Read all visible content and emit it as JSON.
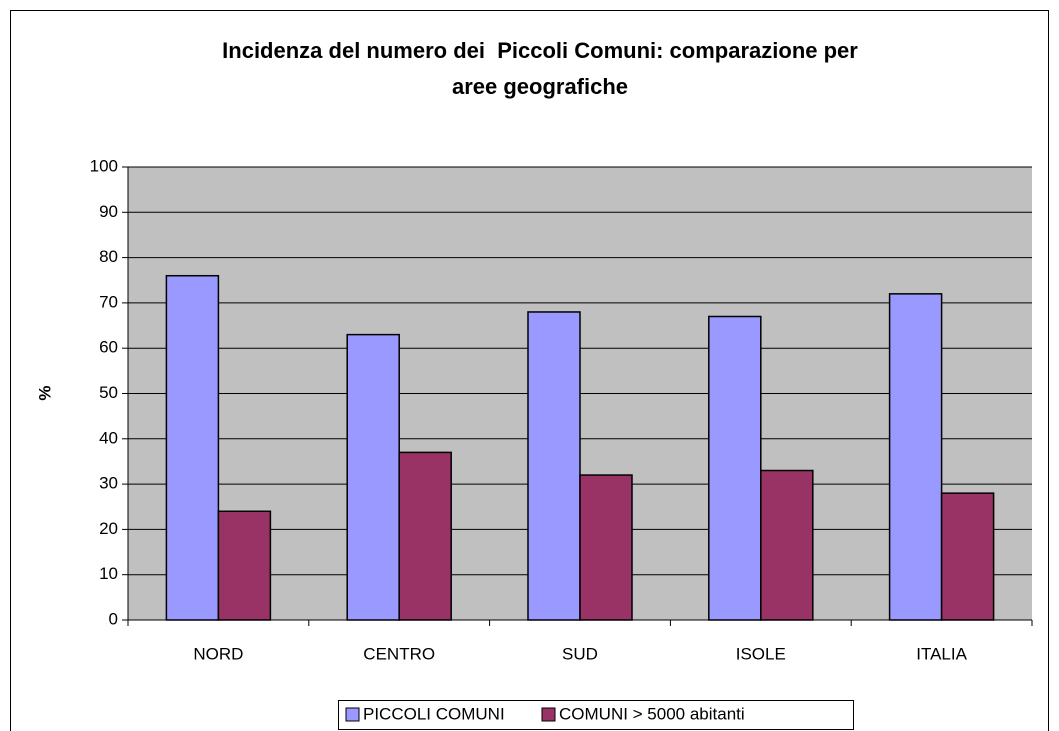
{
  "chart_data": {
    "type": "bar",
    "title": [
      "Incidenza del numero dei  Piccoli Comuni: comparazione per",
      "aree geografiche"
    ],
    "y_label": "%",
    "categories": [
      "NORD",
      "CENTRO",
      "SUD",
      "ISOLE",
      "ITALIA"
    ],
    "series": [
      {
        "name": "PICCOLI COMUNI",
        "color": "#9999ff",
        "values": [
          76,
          63,
          68,
          67,
          72
        ]
      },
      {
        "name": "COMUNI > 5000 abitanti",
        "color": "#993366",
        "values": [
          24,
          37,
          32,
          33,
          28
        ]
      }
    ],
    "ylim": [
      0,
      100
    ],
    "yticks": [
      0,
      10,
      20,
      30,
      40,
      50,
      60,
      70,
      80,
      90,
      100
    ],
    "grid": true,
    "legend": "bottom"
  }
}
